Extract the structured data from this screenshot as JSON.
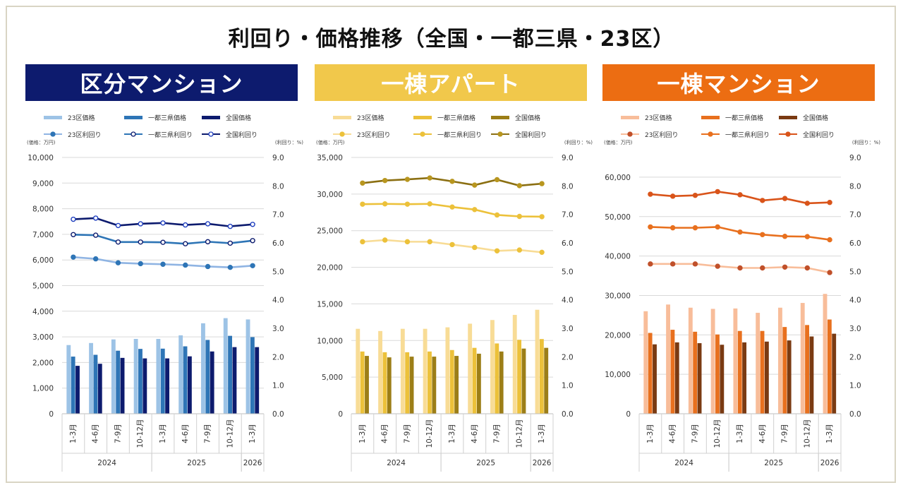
{
  "title": "利回り・価格推移（全国・一都三県・23区）",
  "chart_data": [
    {
      "type": "bar+line",
      "section_title": "区分マンション",
      "header_color": "#0d1b6e",
      "y_left_label": "(価格：万円)",
      "y_right_label": "(利回り：%)",
      "y_left_lim": [
        0,
        10000
      ],
      "y_left_ticks": [
        "0",
        "1,000",
        "2,000",
        "3,000",
        "4,000",
        "5,000",
        "6,000",
        "7,000",
        "8,000",
        "9,000",
        "10,000"
      ],
      "y_right_lim": [
        0,
        9
      ],
      "y_right_ticks": [
        "0.0",
        "1.0",
        "2.0",
        "3.0",
        "4.0",
        "5.0",
        "6.0",
        "7.0",
        "8.0",
        "9.0"
      ],
      "categories": [
        "1-3月",
        "4-6月",
        "7-9月",
        "10-12月",
        "1-3月",
        "4-6月",
        "7-9月",
        "10-12月",
        "1-3月"
      ],
      "years": [
        {
          "label": "2024",
          "start": 0,
          "end": 3
        },
        {
          "label": "2025",
          "start": 4,
          "end": 7
        },
        {
          "label": "2026",
          "start": 8,
          "end": 8
        }
      ],
      "bar_series": [
        {
          "name": "23区価格",
          "color": "#9dc3e6",
          "values": [
            2680,
            2760,
            2900,
            2920,
            2920,
            3060,
            3530,
            3730,
            3680
          ]
        },
        {
          "name": "一都三県価格",
          "color": "#2e75b6",
          "values": [
            2230,
            2300,
            2460,
            2530,
            2540,
            2630,
            2880,
            3040,
            2990
          ]
        },
        {
          "name": "全国価格",
          "color": "#0d1b6e",
          "values": [
            1870,
            1950,
            2180,
            2160,
            2160,
            2240,
            2430,
            2600,
            2600
          ]
        }
      ],
      "line_series": [
        {
          "name": "23区利回り",
          "color": "#8fb4e3",
          "marker_fill": "#2e75b6",
          "values": [
            5.5,
            5.44,
            5.3,
            5.27,
            5.25,
            5.22,
            5.17,
            5.14,
            5.2
          ]
        },
        {
          "name": "一都三県利回り",
          "color": "#2e75b6",
          "marker_fill": "#ffffff",
          "marker_stroke": "#0d1b6e",
          "values": [
            6.29,
            6.27,
            6.03,
            6.03,
            6.02,
            5.97,
            6.04,
            5.99,
            6.08
          ]
        },
        {
          "name": "全国利回り",
          "color": "#0d1b6e",
          "marker_fill": "#ffffff",
          "marker_stroke": "#1f3fbf",
          "values": [
            6.83,
            6.87,
            6.61,
            6.67,
            6.7,
            6.63,
            6.67,
            6.58,
            6.65
          ]
        }
      ]
    },
    {
      "type": "bar+line",
      "section_title": "一棟アパート",
      "header_color": "#f1c84b",
      "y_left_label": "(価格：万円)",
      "y_right_label": "(利回り：%)",
      "y_left_lim": [
        0,
        35000
      ],
      "y_left_ticks": [
        "0",
        "5,000",
        "10,000",
        "15,000",
        "20,000",
        "25,000",
        "30,000",
        "35,000"
      ],
      "y_right_lim": [
        0,
        9
      ],
      "y_right_ticks": [
        "0.0",
        "1.0",
        "2.0",
        "3.0",
        "4.0",
        "5.0",
        "6.0",
        "7.0",
        "8.0",
        "9.0"
      ],
      "categories": [
        "1-3月",
        "4-6月",
        "7-9月",
        "10-12月",
        "1-3月",
        "4-6月",
        "7-9月",
        "10-12月",
        "1-3月"
      ],
      "years": [
        {
          "label": "2024",
          "start": 0,
          "end": 3
        },
        {
          "label": "2025",
          "start": 4,
          "end": 7
        },
        {
          "label": "2026",
          "start": 8,
          "end": 8
        }
      ],
      "bar_series": [
        {
          "name": "23区価格",
          "color": "#f8dc96",
          "values": [
            11600,
            11300,
            11600,
            11600,
            11800,
            12300,
            12800,
            13500,
            14200
          ]
        },
        {
          "name": "一都三県価格",
          "color": "#ecc13a",
          "values": [
            8500,
            8400,
            8400,
            8500,
            8700,
            9000,
            9600,
            10100,
            10200
          ]
        },
        {
          "name": "全国価格",
          "color": "#9c7e17",
          "values": [
            7900,
            7700,
            7800,
            7800,
            7900,
            8200,
            8500,
            8900,
            9000
          ]
        }
      ],
      "line_series": [
        {
          "name": "23区利回り",
          "color": "#f8dc96",
          "marker_fill": "#ecc13a",
          "values": [
            6.04,
            6.1,
            6.04,
            6.04,
            5.94,
            5.84,
            5.72,
            5.75,
            5.67
          ]
        },
        {
          "name": "一都三県利回り",
          "color": "#ecc13a",
          "marker_fill": "#ecc13a",
          "values": [
            7.36,
            7.37,
            7.36,
            7.37,
            7.26,
            7.17,
            6.98,
            6.93,
            6.92
          ]
        },
        {
          "name": "全国利回り",
          "color": "#8b6f12",
          "marker_fill": "#b8961f",
          "values": [
            8.1,
            8.19,
            8.23,
            8.28,
            8.16,
            8.03,
            8.22,
            8.01,
            8.08
          ]
        }
      ]
    },
    {
      "type": "bar+line",
      "section_title": "一棟マンション",
      "header_color": "#ec6d12",
      "y_left_label": "(価格：万円)",
      "y_right_label": "(利回り：%)",
      "y_left_lim": [
        0,
        65000
      ],
      "y_left_ticks": [
        "0",
        "10,000",
        "20,000",
        "30,000",
        "40,000",
        "50,000",
        "60,000"
      ],
      "y_left_tick_values": [
        0,
        10000,
        20000,
        30000,
        40000,
        50000,
        60000
      ],
      "y_right_lim": [
        0,
        9
      ],
      "y_right_ticks": [
        "0.0",
        "1.0",
        "2.0",
        "3.0",
        "4.0",
        "5.0",
        "6.0",
        "7.0",
        "8.0",
        "9.0"
      ],
      "categories": [
        "1-3月",
        "4-6月",
        "7-9月",
        "10-12月",
        "1-3月",
        "4-6月",
        "7-9月",
        "10-12月",
        "1-3月"
      ],
      "years": [
        {
          "label": "2024",
          "start": 0,
          "end": 3
        },
        {
          "label": "2025",
          "start": 4,
          "end": 7
        },
        {
          "label": "2026",
          "start": 8,
          "end": 8
        }
      ],
      "bar_series": [
        {
          "name": "23区価格",
          "color": "#f8bd9a",
          "values": [
            26000,
            27700,
            26900,
            26600,
            26700,
            25600,
            26900,
            28100,
            30400
          ]
        },
        {
          "name": "一都三県価格",
          "color": "#e8701e",
          "values": [
            20500,
            21300,
            20800,
            20100,
            21000,
            21000,
            22000,
            22500,
            23900
          ]
        },
        {
          "name": "全国価格",
          "color": "#7a3a12",
          "values": [
            17600,
            18100,
            17900,
            17500,
            18100,
            18300,
            18600,
            19600,
            20300
          ]
        }
      ],
      "line_series": [
        {
          "name": "23区利回り",
          "color": "#f8bd9a",
          "marker_fill": "#c0502a",
          "values": [
            5.26,
            5.26,
            5.26,
            5.18,
            5.12,
            5.12,
            5.15,
            5.12,
            4.96
          ]
        },
        {
          "name": "一都三県利回り",
          "color": "#e8701e",
          "marker_fill": "#e8701e",
          "values": [
            6.56,
            6.53,
            6.53,
            6.56,
            6.38,
            6.29,
            6.23,
            6.22,
            6.11
          ]
        },
        {
          "name": "全国利回り",
          "color": "#d9541a",
          "marker_fill": "#d9541a",
          "values": [
            7.71,
            7.64,
            7.67,
            7.8,
            7.69,
            7.49,
            7.56,
            7.39,
            7.42
          ]
        }
      ]
    }
  ]
}
